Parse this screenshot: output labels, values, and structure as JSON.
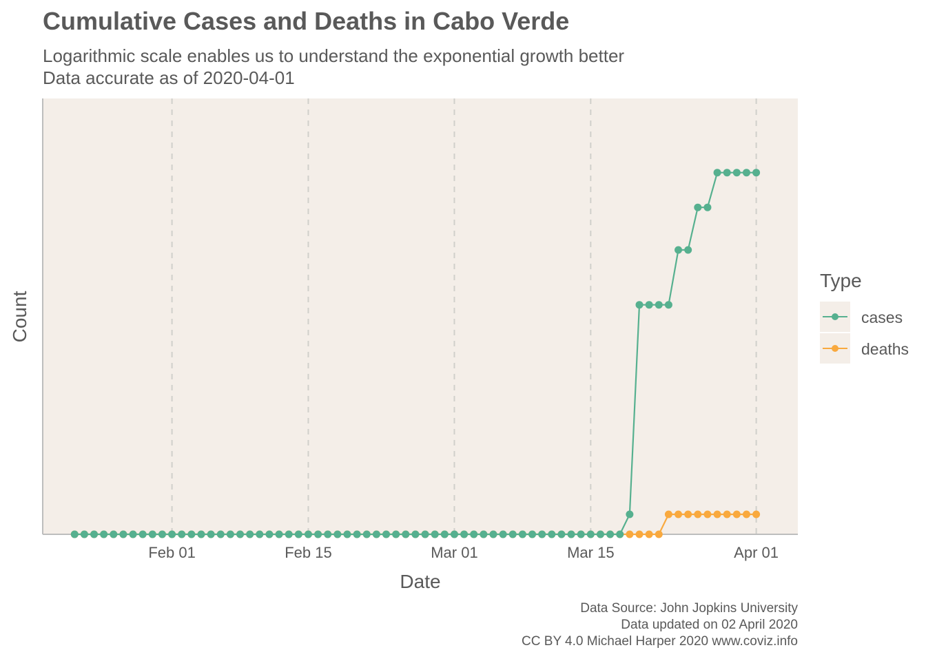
{
  "chart_data": {
    "type": "line",
    "title": "Cumulative Cases and Deaths in Cabo Verde",
    "subtitle": [
      "Logarithmic scale enables us to understand the exponential growth better",
      "Data accurate as of 2020-04-01"
    ],
    "xlabel": "Date",
    "ylabel": "Count",
    "y_scale": "log",
    "y_tick_labels_shown": false,
    "x_ticks": [
      {
        "date": "2020-02-01",
        "label": "Feb 01"
      },
      {
        "date": "2020-02-15",
        "label": "Feb 15"
      },
      {
        "date": "2020-03-01",
        "label": "Mar 01"
      },
      {
        "date": "2020-03-15",
        "label": "Mar 15"
      },
      {
        "date": "2020-04-01",
        "label": "Apr 01"
      }
    ],
    "xlim": [
      "2020-01-20",
      "2020-04-04"
    ],
    "ylim": [
      1,
      8
    ],
    "grid": "vertical-dashed",
    "legend": {
      "title": "Type",
      "position": "right"
    },
    "series": [
      {
        "name": "cases",
        "color": "#56B08F",
        "points": [
          [
            "2020-03-19",
            1
          ],
          [
            "2020-03-20",
            3
          ],
          [
            "2020-03-21",
            3
          ],
          [
            "2020-03-22",
            3
          ],
          [
            "2020-03-23",
            3
          ],
          [
            "2020-03-24",
            4
          ],
          [
            "2020-03-25",
            4
          ],
          [
            "2020-03-26",
            5
          ],
          [
            "2020-03-27",
            5
          ],
          [
            "2020-03-28",
            6
          ],
          [
            "2020-03-29",
            6
          ],
          [
            "2020-03-30",
            6
          ],
          [
            "2020-03-31",
            6
          ],
          [
            "2020-04-01",
            6
          ]
        ]
      },
      {
        "name": "deaths",
        "color": "#F9A93E",
        "points": [
          [
            "2020-03-23",
            1
          ],
          [
            "2020-03-24",
            1
          ],
          [
            "2020-03-25",
            1
          ],
          [
            "2020-03-26",
            1
          ],
          [
            "2020-03-27",
            1
          ],
          [
            "2020-03-28",
            1
          ],
          [
            "2020-03-29",
            1
          ],
          [
            "2020-03-30",
            1
          ],
          [
            "2020-03-31",
            1
          ],
          [
            "2020-04-01",
            1
          ]
        ]
      }
    ],
    "zero_series_start": "2020-01-22",
    "cases_zero_until": "2020-03-18",
    "deaths_zero_until": "2020-03-22"
  },
  "caption": [
    "Data Source: John Jopkins University",
    "Data updated on 02 April 2020",
    "CC BY 4.0 Michael Harper 2020 www.coviz.info"
  ],
  "colors": {
    "panel_bg": "#F4EEE8",
    "grid": "#D0CFCB",
    "axis": "#BDBDBD",
    "text": "#595959"
  }
}
